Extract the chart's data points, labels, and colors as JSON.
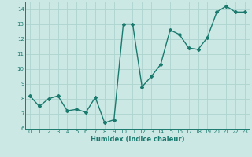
{
  "x": [
    0,
    1,
    2,
    3,
    4,
    5,
    6,
    7,
    8,
    9,
    10,
    11,
    12,
    13,
    14,
    15,
    16,
    17,
    18,
    19,
    20,
    21,
    22,
    23
  ],
  "y": [
    8.2,
    7.5,
    8.0,
    8.2,
    7.2,
    7.3,
    7.1,
    8.1,
    6.4,
    6.6,
    13.0,
    13.0,
    8.8,
    9.5,
    10.3,
    12.6,
    12.3,
    11.4,
    11.3,
    12.1,
    13.8,
    14.2,
    13.8,
    13.8
  ],
  "xlabel": "Humidex (Indice chaleur)",
  "ylim": [
    6,
    14.5
  ],
  "xlim": [
    -0.5,
    23.5
  ],
  "yticks": [
    6,
    7,
    8,
    9,
    10,
    11,
    12,
    13,
    14
  ],
  "xticks": [
    0,
    1,
    2,
    3,
    4,
    5,
    6,
    7,
    8,
    9,
    10,
    11,
    12,
    13,
    14,
    15,
    16,
    17,
    18,
    19,
    20,
    21,
    22,
    23
  ],
  "line_color": "#1a7a6e",
  "bg_color": "#cce8e5",
  "grid_color": "#aed4d0",
  "marker": "D",
  "markersize": 2.0,
  "linewidth": 1.0
}
